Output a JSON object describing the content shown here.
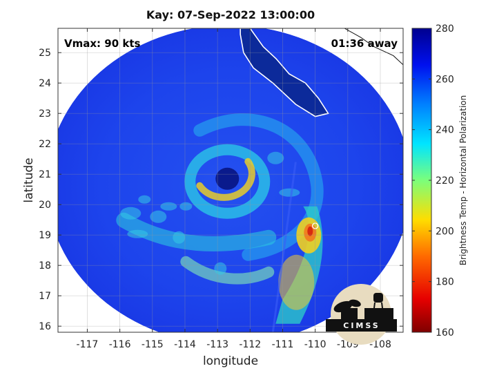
{
  "title": "Kay: 07-Sep-2022 13:00:00",
  "annotations": {
    "vmax": "Vmax: 90 kts",
    "time_away": "01:36 away"
  },
  "axes": {
    "xlabel": "longitude",
    "ylabel": "latitude",
    "x_ticks": [
      -117,
      -116,
      -115,
      -114,
      -113,
      -112,
      -111,
      -110,
      -109,
      -108
    ],
    "x_tick_labels": [
      "-117",
      "-116",
      "-115",
      "-114",
      "-113",
      "-112",
      "-111",
      "-110",
      "-109",
      "-108"
    ],
    "y_ticks": [
      16,
      17,
      18,
      19,
      20,
      21,
      22,
      23,
      24,
      25
    ],
    "y_tick_labels": [
      "16",
      "17",
      "18",
      "19",
      "20",
      "21",
      "22",
      "23",
      "24",
      "25"
    ],
    "xlim": [
      -117.9,
      -107.3
    ],
    "ylim": [
      15.8,
      25.8
    ],
    "grid": true
  },
  "colorbar": {
    "label": "Brightness Temp - Horizontal Polarization",
    "range": [
      160,
      280
    ],
    "ticks": [
      160,
      180,
      200,
      220,
      240,
      260,
      280
    ],
    "tick_labels": [
      "160",
      "180",
      "200",
      "220",
      "240",
      "260",
      "280"
    ],
    "colormap": "jet"
  },
  "storm": {
    "eye_center": [
      -112.7,
      20.85
    ],
    "swath_center": [
      -112.65,
      20.65
    ],
    "swath_radius_deg_x": 5.6,
    "swath_radius_deg_y": 5.25
  },
  "logo": {
    "text": "CIMSS"
  },
  "colors": {
    "background_ocean": "#1a3ee8",
    "eye": "#0a1a8c",
    "land_fill": "#ffffff",
    "rain_band_warm": "#f2c21a",
    "rain_band_cool": "#22c8d8"
  }
}
